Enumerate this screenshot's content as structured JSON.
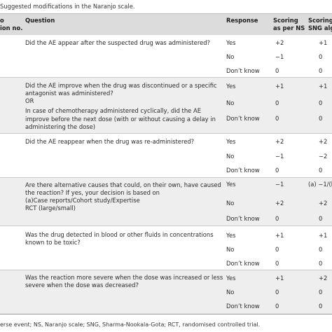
{
  "caption": "Suggested modifications in the Naranjo scale.",
  "header": {
    "col1_line1": "o",
    "col1_line2": "ion no.",
    "question": "Question",
    "response": "Response",
    "ns_line1": "Scoring",
    "ns_line2": "as per NS",
    "sng_line1": "Scoring",
    "sng_line2": "SNG alg"
  },
  "rows": [
    {
      "question": [
        "Did the AE appear after the suspected drug was administered?"
      ],
      "responses": [
        {
          "label": "Yes",
          "ns": "+2",
          "sng": "+1"
        },
        {
          "label": "No",
          "ns": "−1",
          "sng": "0"
        },
        {
          "label": "Don’t know",
          "ns": "0",
          "sng": "0"
        }
      ]
    },
    {
      "question": [
        "Did the AE improve when the drug was discontinued or a specific",
        "antagonist was administered?",
        "OR",
        "In case of chemotherapy administered cyclically, did the AE",
        "improve before the next dose (with or without causing a delay in",
        "administering the dose)"
      ],
      "responses": [
        {
          "label": "Yes",
          "ns": "+1",
          "sng": "+1"
        },
        {
          "label": "No",
          "ns": "0",
          "sng": "0"
        },
        {
          "label": "Don’t know",
          "ns": "0",
          "sng": "0"
        }
      ]
    },
    {
      "question": [
        "Did the AE reappear when the drug was re-administered?"
      ],
      "responses": [
        {
          "label": "Yes",
          "ns": "+2",
          "sng": "+2"
        },
        {
          "label": "No",
          "ns": "−1",
          "sng": "−2"
        },
        {
          "label": "Don’t know",
          "ns": "0",
          "sng": "0"
        }
      ]
    },
    {
      "question": [
        "Are there alternative causes that could, on their own, have caused",
        "the reaction? If yes, your decision is based on",
        "(a)Case reports/Cohort study/Expertise",
        "RCT (large/small)"
      ],
      "responses": [
        {
          "label": "Yes",
          "ns": "−1",
          "sng": "(a) −1/(b"
        },
        {
          "label": "No",
          "ns": "+2",
          "sng": "+2"
        },
        {
          "label": "Don’t know",
          "ns": "0",
          "sng": "0"
        }
      ]
    },
    {
      "question": [
        "Was the drug detected in blood or other fluids in concentrations",
        "known to be toxic?"
      ],
      "responses": [
        {
          "label": "Yes",
          "ns": "+1",
          "sng": "+1"
        },
        {
          "label": "No",
          "ns": "0",
          "sng": "0"
        },
        {
          "label": "Don’t know",
          "ns": "0",
          "sng": "0"
        }
      ]
    },
    {
      "question": [
        "Was the reaction more severe when the dose was increased or less",
        "severe when the dose was decreased?"
      ],
      "responses": [
        {
          "label": "Yes",
          "ns": "+1",
          "sng": "+2"
        },
        {
          "label": "No",
          "ns": "0",
          "sng": "0"
        },
        {
          "label": "Don’t know",
          "ns": "0",
          "sng": "0"
        }
      ]
    }
  ],
  "footer": "erse event; NS, Naranjo scale; SNG, Sharma-Nookala-Gota; RCT, randomised controlled trial."
}
